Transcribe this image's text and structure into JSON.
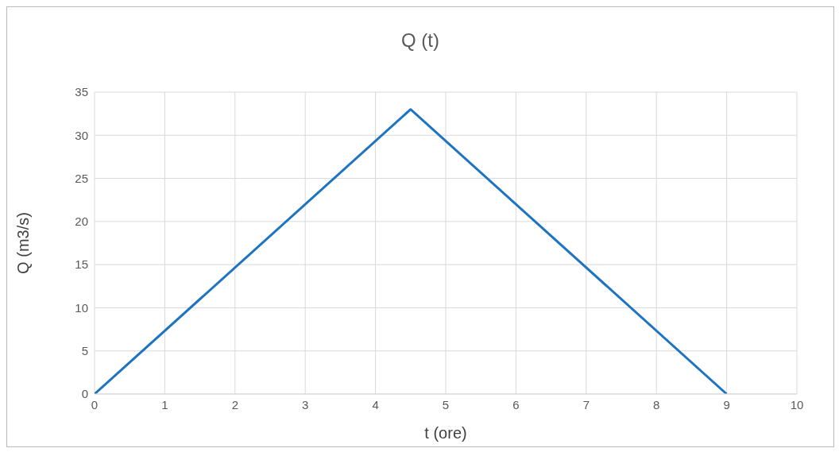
{
  "chart_data": {
    "type": "line",
    "title": "Q (t)",
    "xlabel": "t (ore)",
    "ylabel": "Q (m3/s)",
    "x": [
      0,
      4.5,
      9
    ],
    "series": [
      {
        "color": "#1f74c1",
        "values": [
          0,
          33,
          0
        ]
      }
    ],
    "xlim": [
      0,
      10
    ],
    "xticks": [
      0,
      1,
      2,
      3,
      4,
      5,
      6,
      7,
      8,
      9,
      10
    ],
    "ylim": [
      0,
      35
    ],
    "yticks": [
      0,
      5,
      10,
      15,
      20,
      25,
      30,
      35
    ],
    "grid": true,
    "marker": "none",
    "line_style": "solid"
  }
}
